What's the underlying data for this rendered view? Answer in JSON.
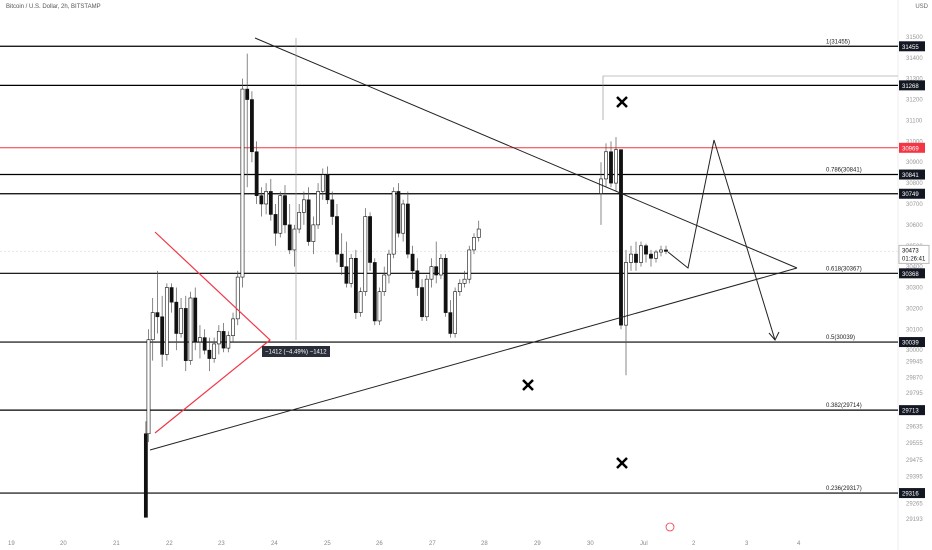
{
  "header": {
    "symbol": "Bitcoin / U.S. Dollar, 2h, BITSTAMP",
    "currency": "USD"
  },
  "chart_data": {
    "type": "candlestick",
    "title": "Bitcoin / U.S. Dollar, 2h, BITSTAMP",
    "ylim": [
      29120,
      31600
    ],
    "xlim": [
      19.0,
      5.3
    ],
    "x_ticks": [
      "19",
      "20",
      "21",
      "22",
      "23",
      "24",
      "25",
      "26",
      "27",
      "28",
      "29",
      "30",
      "Jul",
      "2",
      "3",
      "4"
    ],
    "y_ticks": [
      31500,
      31400,
      31300,
      31200,
      31100,
      31000,
      30900,
      30800,
      30700,
      30600,
      30500,
      30400,
      30300,
      30200,
      30100,
      30000,
      29945,
      29870,
      29795,
      29635,
      29555,
      29475,
      29395,
      29265,
      29193
    ],
    "levels": [
      {
        "price": 31455,
        "label": "1(31455)",
        "badge": "31455",
        "color": "#000000"
      },
      {
        "price": 31268,
        "label": "",
        "badge": "31268",
        "color": "#000000"
      },
      {
        "price": 30969,
        "label": "",
        "badge": "30969",
        "color": "#f23645"
      },
      {
        "price": 30841,
        "label": "0.786(30841)",
        "badge": "30841",
        "color": "#000000"
      },
      {
        "price": 30749,
        "label": "",
        "badge": "30749",
        "color": "#000000"
      },
      {
        "price": 30368,
        "label": "0.618(30367)",
        "badge": "30368",
        "color": "#000000"
      },
      {
        "price": 30039,
        "label": "0.5(30039)",
        "badge": "30039",
        "color": "#000000"
      },
      {
        "price": 29713,
        "label": "0.382(29714)",
        "badge": "29713",
        "color": "#000000"
      },
      {
        "price": 29316,
        "label": "0.236(29317)",
        "badge": "29316",
        "color": "#000000"
      }
    ],
    "current_price": "30473",
    "countdown": "01:26:41",
    "measure_label": "−1412 (−4.49%) −1412",
    "candles": [
      [
        21.55,
        29600,
        29660,
        29200,
        29200
      ],
      [
        21.6,
        29600,
        30100,
        29560,
        30050
      ],
      [
        21.68,
        30050,
        30250,
        29950,
        30180
      ],
      [
        21.77,
        30180,
        30380,
        30080,
        30160
      ],
      [
        21.86,
        30160,
        30260,
        29920,
        29980
      ],
      [
        21.95,
        29980,
        30320,
        29950,
        30300
      ],
      [
        22.04,
        30300,
        30320,
        30180,
        30230
      ],
      [
        22.13,
        30230,
        30300,
        30000,
        30080
      ],
      [
        22.22,
        30080,
        30250,
        30060,
        30200
      ],
      [
        22.31,
        30200,
        30260,
        29900,
        29950
      ],
      [
        22.4,
        29950,
        30280,
        29930,
        30250
      ],
      [
        22.49,
        30250,
        30300,
        30000,
        30040
      ],
      [
        22.58,
        30040,
        30120,
        29960,
        30060
      ],
      [
        22.67,
        30060,
        30100,
        29980,
        30000
      ],
      [
        22.76,
        30000,
        30060,
        29900,
        29960
      ],
      [
        22.85,
        29960,
        30060,
        29940,
        30030
      ],
      [
        22.94,
        30030,
        30120,
        29980,
        30090
      ],
      [
        23.03,
        30090,
        30130,
        29990,
        30010
      ],
      [
        23.12,
        30010,
        30090,
        29990,
        30070
      ],
      [
        23.21,
        30070,
        30180,
        30040,
        30150
      ],
      [
        23.3,
        30150,
        30380,
        30120,
        30350
      ],
      [
        23.39,
        30350,
        31300,
        30300,
        31250
      ],
      [
        23.48,
        31250,
        31420,
        30780,
        31200
      ],
      [
        23.57,
        31200,
        31240,
        30900,
        30950
      ],
      [
        23.66,
        30950,
        31000,
        30700,
        30740
      ],
      [
        23.75,
        30740,
        30780,
        30640,
        30700
      ],
      [
        23.84,
        30700,
        30800,
        30650,
        30760
      ],
      [
        23.93,
        30760,
        30820,
        30620,
        30650
      ],
      [
        24.02,
        30650,
        30700,
        30500,
        30560
      ],
      [
        24.11,
        30560,
        30760,
        30540,
        30740
      ],
      [
        24.2,
        30740,
        30790,
        30560,
        30600
      ],
      [
        24.29,
        30600,
        30700,
        30460,
        30480
      ],
      [
        24.38,
        30480,
        30600,
        30400,
        30580
      ],
      [
        24.47,
        30580,
        30700,
        30560,
        30660
      ],
      [
        24.56,
        30660,
        30760,
        30600,
        30720
      ],
      [
        24.65,
        30720,
        30780,
        30500,
        30520
      ],
      [
        24.74,
        30520,
        30640,
        30460,
        30600
      ],
      [
        24.83,
        30600,
        30800,
        30580,
        30760
      ],
      [
        24.92,
        30760,
        30870,
        30720,
        30840
      ],
      [
        25.01,
        30840,
        30880,
        30700,
        30720
      ],
      [
        25.1,
        30720,
        30760,
        30600,
        30640
      ],
      [
        25.19,
        30640,
        30700,
        30420,
        30460
      ],
      [
        25.28,
        30460,
        30560,
        30360,
        30400
      ],
      [
        25.37,
        30400,
        30520,
        30300,
        30320
      ],
      [
        25.46,
        30320,
        30460,
        30300,
        30440
      ],
      [
        25.55,
        30440,
        30480,
        30150,
        30180
      ],
      [
        25.64,
        30180,
        30300,
        30160,
        30280
      ],
      [
        25.73,
        30280,
        30680,
        30260,
        30640
      ],
      [
        25.82,
        30640,
        30660,
        30380,
        30420
      ],
      [
        25.91,
        30420,
        30440,
        30120,
        30140
      ],
      [
        26.0,
        30140,
        30300,
        30120,
        30280
      ],
      [
        26.09,
        30280,
        30400,
        30260,
        30360
      ],
      [
        26.18,
        30360,
        30480,
        30320,
        30460
      ],
      [
        26.27,
        30460,
        30780,
        30440,
        30760
      ],
      [
        26.36,
        30760,
        30800,
        30540,
        30560
      ],
      [
        26.45,
        30560,
        30720,
        30520,
        30700
      ],
      [
        26.54,
        30700,
        30760,
        30440,
        30460
      ],
      [
        26.63,
        30460,
        30500,
        30340,
        30380
      ],
      [
        26.72,
        30380,
        30440,
        30260,
        30300
      ],
      [
        26.81,
        30300,
        30340,
        30140,
        30160
      ],
      [
        26.9,
        30160,
        30360,
        30140,
        30340
      ],
      [
        26.99,
        30340,
        30440,
        30300,
        30400
      ],
      [
        27.08,
        30400,
        30520,
        30320,
        30360
      ],
      [
        27.17,
        30360,
        30460,
        30340,
        30440
      ],
      [
        27.26,
        30440,
        30460,
        30160,
        30180
      ],
      [
        27.35,
        30180,
        30240,
        30060,
        30080
      ],
      [
        27.44,
        30080,
        30300,
        30060,
        30280
      ],
      [
        27.53,
        30280,
        30340,
        30260,
        30320
      ],
      [
        27.62,
        30320,
        30380,
        30300,
        30340
      ],
      [
        27.71,
        30340,
        30500,
        30320,
        30480
      ],
      [
        27.8,
        30480,
        30560,
        30460,
        30540
      ],
      [
        27.89,
        30540,
        30620,
        30520,
        30580
      ]
    ]
  }
}
